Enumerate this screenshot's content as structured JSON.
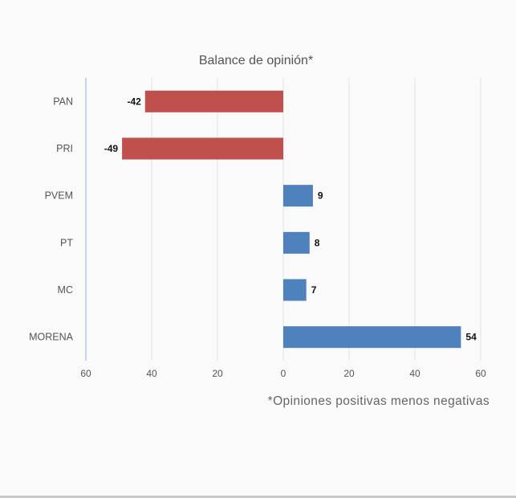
{
  "chart_data": {
    "type": "bar",
    "orientation": "horizontal",
    "title": "Balance de opinión*",
    "categories": [
      "PAN",
      "PRI",
      "PVEM",
      "PT",
      "MC",
      "MORENA"
    ],
    "values": [
      -42,
      -49,
      9,
      8,
      7,
      54
    ],
    "data_labels": [
      "-42",
      "-49",
      "9",
      "8",
      "7",
      "54"
    ],
    "xlim": [
      -60,
      60
    ],
    "x_ticks": [
      -60,
      -40,
      -20,
      0,
      20,
      40,
      60
    ],
    "x_tick_labels": [
      "60",
      "40",
      "20",
      "0",
      "20",
      "40",
      "60"
    ],
    "grid": true,
    "colors": {
      "negative": "#c0504d",
      "positive": "#4f81bd",
      "grid": "#e3e3e3",
      "axis": "#b8c7e6"
    },
    "footnote": "*Opiniones positivas menos negativas"
  }
}
